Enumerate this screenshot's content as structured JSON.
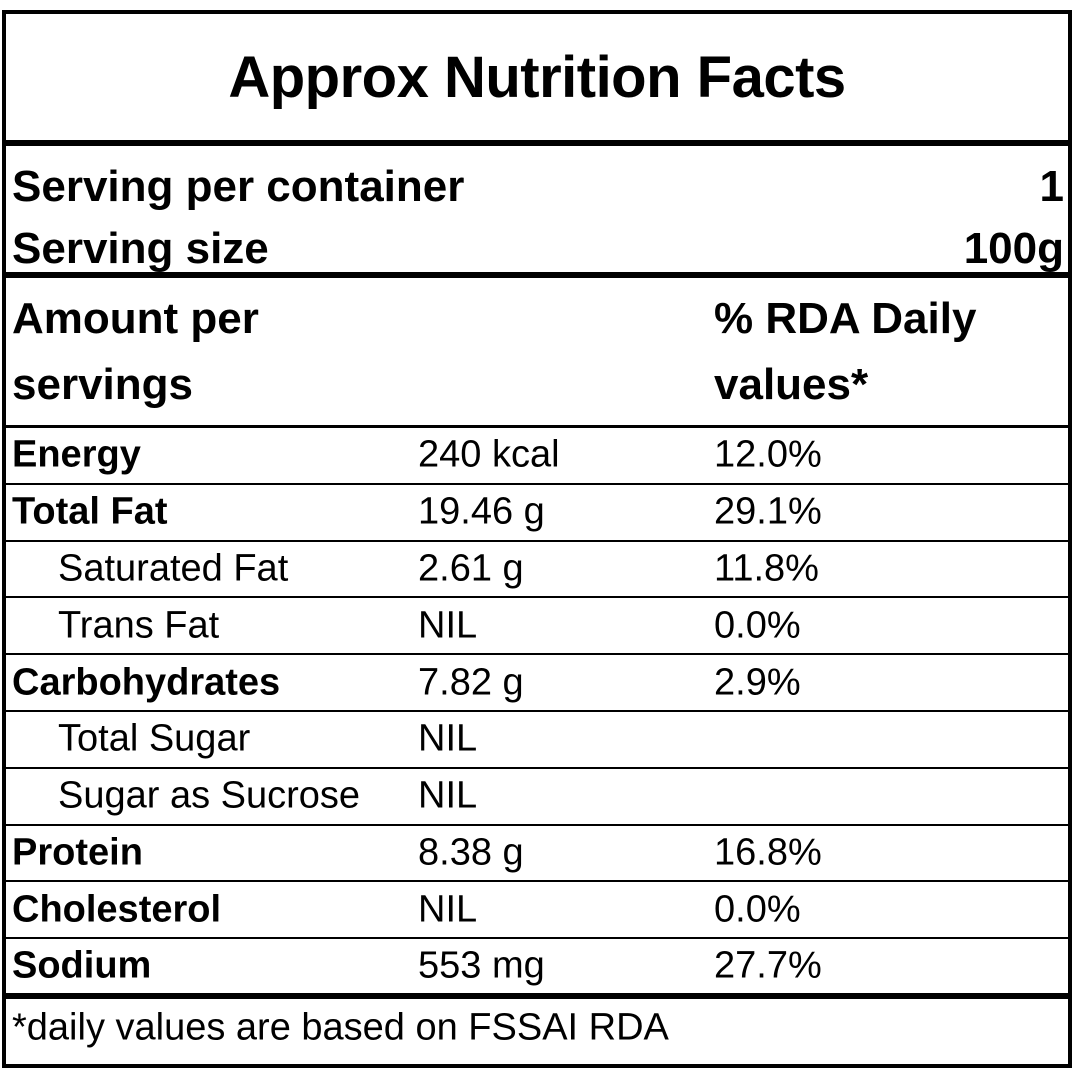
{
  "title": "Approx Nutrition Facts",
  "serving": {
    "per_container_label": "Serving per container",
    "per_container_value": "1",
    "size_label": "Serving size",
    "size_value": "100g"
  },
  "header": {
    "amount_label": "Amount per servings",
    "rda_label": "% RDA Daily values*"
  },
  "nutrients": [
    {
      "name": "Energy",
      "amount": "240 kcal",
      "pct": "12.0%"
    },
    {
      "name": "Total Fat",
      "amount": "19.46 g",
      "pct": "29.1%"
    },
    {
      "name": "Saturated Fat",
      "amount": "2.61 g",
      "pct": "11.8%"
    },
    {
      "name": "Trans Fat",
      "amount": "NIL",
      "pct": "0.0%"
    },
    {
      "name": "Carbohydrates",
      "amount": "7.82 g",
      "pct": "2.9%"
    },
    {
      "name": "Total Sugar",
      "amount": "NIL",
      "pct": ""
    },
    {
      "name": "Sugar as Sucrose",
      "amount": "NIL",
      "pct": ""
    },
    {
      "name": "Protein",
      "amount": "8.38 g",
      "pct": "16.8%"
    },
    {
      "name": "Cholesterol",
      "amount": "NIL",
      "pct": "0.0%"
    },
    {
      "name": "Sodium",
      "amount": "553 mg",
      "pct": "27.7%"
    }
  ],
  "footnote": "*daily values are based on FSSAI RDA"
}
